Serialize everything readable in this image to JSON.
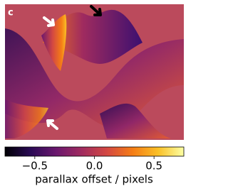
{
  "chart_data": {
    "type": "colorbar",
    "panel_label": "c",
    "colorbar_label": "parallax offset / pixels",
    "xlim": [
      -0.75,
      0.75
    ],
    "xticks": [
      {
        "value": -0.5,
        "label": "−0.5"
      },
      {
        "value": 0,
        "label": "0.0"
      },
      {
        "value": 0.5,
        "label": "0.5"
      }
    ],
    "colors": [
      "#000004",
      "#2a0a55",
      "#6a176e",
      "#a02b5f",
      "#d44842",
      "#f57d15",
      "#fac127",
      "#fcffa4"
    ]
  }
}
